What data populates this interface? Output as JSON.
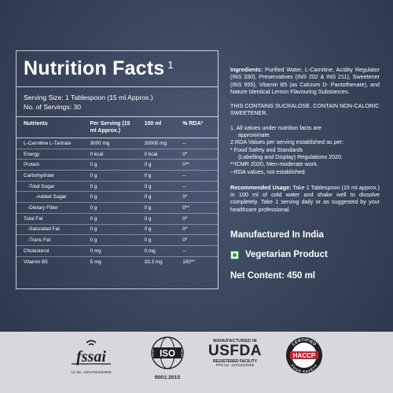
{
  "panel": {
    "title": "Nutrition Facts",
    "title_sup": "1",
    "serving_size": "Serving Size: 1 Tablespoon (15 ml Approx.)",
    "servings": "No. of Servings: 30",
    "headers": [
      "Nutrients",
      "Per Serving (15 ml Approx.)",
      "100 ml",
      "% RDA²"
    ],
    "rows": [
      {
        "name": "L-Carnitine L-Tartrate",
        "serving": "3000 mg",
        "per100": "20000 mg",
        "rda": "--"
      },
      {
        "name": "Energy",
        "serving": "0 kcal",
        "per100": "0 kcal",
        "rda": "0*"
      },
      {
        "name": "Protein",
        "serving": "0 g",
        "per100": "0 g",
        "rda": "0**"
      },
      {
        "name": "Carbohydrate",
        "serving": "0 g",
        "per100": "0 g",
        "rda": "--"
      },
      {
        "name": "-Total Sugar",
        "serving": "0 g",
        "per100": "0 g",
        "rda": "--"
      },
      {
        "name": "-Added Sugar",
        "serving": "0 g",
        "per100": "0 g",
        "rda": "0*"
      },
      {
        "name": "-Dietary Fiber",
        "serving": "0 g",
        "per100": "0 g",
        "rda": "0**"
      },
      {
        "name": "Total Fat",
        "serving": "0 g",
        "per100": "0 g",
        "rda": "0*"
      },
      {
        "name": "-Saturated Fat",
        "serving": "0 g",
        "per100": "0 g",
        "rda": "0*"
      },
      {
        "name": "-Trans Fat",
        "serving": "0 g",
        "per100": "0 g",
        "rda": "0*"
      },
      {
        "name": "Cholesterol",
        "serving": "0 mg",
        "per100": "0 mg",
        "rda": "--"
      },
      {
        "name": "Vitamin B5",
        "serving": "5 mg",
        "per100": "33.3 mg",
        "rda": "100**"
      }
    ]
  },
  "info": {
    "ingredients_label": "Ingredients:",
    "ingredients_text": "Purified Water, L-Carnitine, Acidity Regulator (INS 330), Preservatives (INS 202 & INS 211), Sweetener (INS 955), Vitamin B5 (as Calcium D- Pantothenate), and Nature Identical Lemon Flavouring Substances.",
    "sucralose": "THIS CONTAINS SUCRALOSE. CONTAIN NON-CALORIC SWEETENER.",
    "note1": "1. All values under nutrition facts are",
    "note1b": "approximate.",
    "note2": "2.RDA Values per serving established as per:",
    "note3": "* Food Safety and Standards",
    "note3b": "(Labelling and Display) Regulations 2020.",
    "note4": "**ICMR 2020, Men-moderate work.",
    "note5": "--RDA values, not established.",
    "usage_label": "Recommended Usage:",
    "usage_text": "Take 1 Tablespoon (15 ml approx.) in 100 ml of cold water and shake well to dissolve completely. Take 1 serving daily or as suggested by your healthcare professional.",
    "manufactured": "Manufactured In India",
    "vegetarian": "Vegetarian Product",
    "net_content": "Net Content: 450 ml"
  },
  "badges": {
    "fssai_text": "fssai",
    "fssai_lic": "Lic No. 10017011004609",
    "iso_text": "ISO",
    "iso_cert": "9001:2015",
    "usfda_line1": "MANUFACTURED IN",
    "usfda_line2": "USFDA",
    "usfda_line3": "REGISTERED FACILITY",
    "usfda_line4": "FFR No. 15731026290",
    "haccp_text": "HACCP",
    "haccp_ring": "CERTIFIED",
    "haccp_ring_bottom": "FOOD SAFETY"
  },
  "colors": {
    "background": "#3a475d",
    "band": "#d6d8dd",
    "veg_green": "#1f9a4a",
    "haccp_red": "#c8202a"
  }
}
